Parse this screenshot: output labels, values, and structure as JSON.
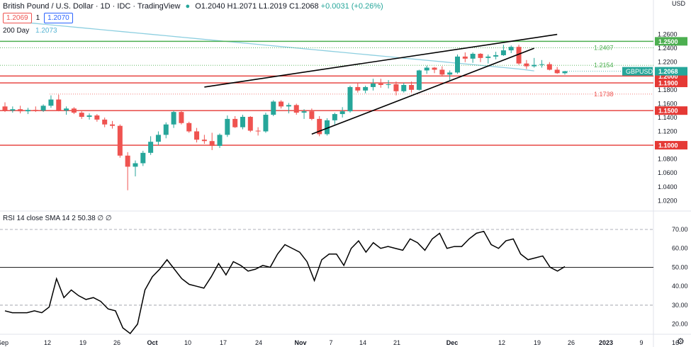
{
  "header": {
    "title": "British Pound / U.S. Dollar · 1D · IDC · TradingView",
    "open": "O1.2040",
    "high": "H1.2071",
    "low": "L1.2019",
    "close": "C1.2068",
    "change": "+0.0031 (+0.26%)",
    "bid": "1.2069",
    "spread": "1",
    "ask": "1.2070"
  },
  "ma": {
    "label": "200 Day",
    "value": "1.2073"
  },
  "rsi_header": "RSI 14 close SMA 14 2   50.38  ∅  ∅",
  "currency": "USD",
  "colors": {
    "up": "#26a69a",
    "down": "#ef5350",
    "ma": "#8dcfe0",
    "hline_red": "#e53935",
    "hline_green": "#4caf50"
  },
  "chart_data": [
    {
      "type": "candlestick",
      "symbol": "GBPUSD",
      "last_price": "1.2068",
      "y_ticks": [
        "1.2600",
        "1.2400",
        "1.2200",
        "1.2000",
        "1.1800",
        "1.1600",
        "1.1400",
        "1.1200",
        "1.1000",
        "1.0800",
        "1.0600",
        "1.0400",
        "1.0200"
      ],
      "x_ticks": [
        "Sep",
        "12",
        "19",
        "26",
        "Oct",
        "10",
        "17",
        "24",
        "Nov",
        "7",
        "14",
        "21",
        "Dec",
        "12",
        "19",
        "26",
        "2023",
        "9",
        "16"
      ],
      "horizontal_levels": [
        {
          "value": 1.25,
          "label": "1.2500",
          "color": "#4caf50"
        },
        {
          "value": 1.2,
          "label": "1.2000",
          "color": "#e53935"
        },
        {
          "value": 1.19,
          "label": "1.1900",
          "color": "#e53935"
        },
        {
          "value": 1.15,
          "label": "1.1500",
          "color": "#e53935"
        },
        {
          "value": 1.1,
          "label": "1.1000",
          "color": "#e53935"
        }
      ],
      "dotted_levels": [
        {
          "value": 1.2407,
          "label": "1.2407",
          "color": "#4caf50"
        },
        {
          "value": 1.2154,
          "label": "1.2154",
          "color": "#4caf50"
        },
        {
          "value": 1.1738,
          "label": "1.1738",
          "color": "#ef5350"
        }
      ],
      "candles": [
        [
          1.156,
          1.162,
          1.148,
          1.15
        ],
        [
          1.15,
          1.156,
          1.147,
          1.152
        ],
        [
          1.152,
          1.157,
          1.146,
          1.149
        ],
        [
          1.149,
          1.154,
          1.145,
          1.151
        ],
        [
          1.151,
          1.156,
          1.148,
          1.15
        ],
        [
          1.15,
          1.159,
          1.148,
          1.157
        ],
        [
          1.157,
          1.172,
          1.154,
          1.166
        ],
        [
          1.166,
          1.173,
          1.149,
          1.15
        ],
        [
          1.15,
          1.156,
          1.144,
          1.153
        ],
        [
          1.153,
          1.155,
          1.145,
          1.147
        ],
        [
          1.147,
          1.149,
          1.138,
          1.141
        ],
        [
          1.141,
          1.146,
          1.137,
          1.143
        ],
        [
          1.143,
          1.145,
          1.134,
          1.137
        ],
        [
          1.137,
          1.14,
          1.126,
          1.13
        ],
        [
          1.13,
          1.135,
          1.124,
          1.128
        ],
        [
          1.128,
          1.13,
          1.082,
          1.085
        ],
        [
          1.085,
          1.09,
          1.035,
          1.069
        ],
        [
          1.069,
          1.078,
          1.055,
          1.074
        ],
        [
          1.074,
          1.092,
          1.07,
          1.089
        ],
        [
          1.089,
          1.113,
          1.086,
          1.105
        ],
        [
          1.105,
          1.12,
          1.1,
          1.115
        ],
        [
          1.115,
          1.133,
          1.11,
          1.13
        ],
        [
          1.13,
          1.15,
          1.125,
          1.148
        ],
        [
          1.148,
          1.15,
          1.13,
          1.132
        ],
        [
          1.132,
          1.134,
          1.118,
          1.12
        ],
        [
          1.12,
          1.125,
          1.104,
          1.108
        ],
        [
          1.108,
          1.115,
          1.102,
          1.106
        ],
        [
          1.106,
          1.118,
          1.093,
          1.099
        ],
        [
          1.099,
          1.117,
          1.096,
          1.115
        ],
        [
          1.115,
          1.143,
          1.112,
          1.138
        ],
        [
          1.138,
          1.142,
          1.125,
          1.126
        ],
        [
          1.126,
          1.144,
          1.123,
          1.141
        ],
        [
          1.141,
          1.142,
          1.119,
          1.121
        ],
        [
          1.121,
          1.126,
          1.114,
          1.12
        ],
        [
          1.12,
          1.147,
          1.118,
          1.144
        ],
        [
          1.144,
          1.165,
          1.142,
          1.163
        ],
        [
          1.163,
          1.165,
          1.153,
          1.156
        ],
        [
          1.156,
          1.161,
          1.146,
          1.158
        ],
        [
          1.158,
          1.16,
          1.144,
          1.147
        ],
        [
          1.147,
          1.152,
          1.138,
          1.149
        ],
        [
          1.149,
          1.153,
          1.136,
          1.138
        ],
        [
          1.138,
          1.142,
          1.113,
          1.116
        ],
        [
          1.116,
          1.139,
          1.114,
          1.136
        ],
        [
          1.136,
          1.147,
          1.13,
          1.145
        ],
        [
          1.145,
          1.155,
          1.14,
          1.149
        ],
        [
          1.149,
          1.186,
          1.147,
          1.184
        ],
        [
          1.184,
          1.19,
          1.176,
          1.179
        ],
        [
          1.179,
          1.186,
          1.175,
          1.184
        ],
        [
          1.184,
          1.196,
          1.179,
          1.189
        ],
        [
          1.189,
          1.196,
          1.183,
          1.187
        ],
        [
          1.187,
          1.194,
          1.182,
          1.188
        ],
        [
          1.188,
          1.192,
          1.172,
          1.178
        ],
        [
          1.178,
          1.19,
          1.176,
          1.187
        ],
        [
          1.187,
          1.192,
          1.176,
          1.18
        ],
        [
          1.18,
          1.209,
          1.179,
          1.208
        ],
        [
          1.208,
          1.215,
          1.203,
          1.212
        ],
        [
          1.212,
          1.213,
          1.204,
          1.209
        ],
        [
          1.209,
          1.214,
          1.199,
          1.202
        ],
        [
          1.202,
          1.208,
          1.194,
          1.205
        ],
        [
          1.205,
          1.231,
          1.203,
          1.228
        ],
        [
          1.228,
          1.234,
          1.22,
          1.225
        ],
        [
          1.225,
          1.234,
          1.219,
          1.232
        ],
        [
          1.232,
          1.233,
          1.22,
          1.226
        ],
        [
          1.226,
          1.231,
          1.218,
          1.228
        ],
        [
          1.228,
          1.235,
          1.224,
          1.23
        ],
        [
          1.23,
          1.245,
          1.229,
          1.237
        ],
        [
          1.237,
          1.244,
          1.233,
          1.242
        ],
        [
          1.242,
          1.245,
          1.216,
          1.218
        ],
        [
          1.218,
          1.223,
          1.21,
          1.214
        ],
        [
          1.214,
          1.226,
          1.212,
          1.216
        ],
        [
          1.216,
          1.223,
          1.212,
          1.217
        ],
        [
          1.217,
          1.22,
          1.208,
          1.209
        ],
        [
          1.209,
          1.213,
          1.203,
          1.204
        ],
        [
          1.204,
          1.2071,
          1.2019,
          1.2068
        ]
      ],
      "ma_200": [
        1.28,
        1.278,
        1.276,
        1.274,
        1.272,
        1.27,
        1.268,
        1.266,
        1.264,
        1.262,
        1.26,
        1.258,
        1.256,
        1.254,
        1.252,
        1.25,
        1.248,
        1.246,
        1.244,
        1.242,
        1.24,
        1.238,
        1.236,
        1.234,
        1.232,
        1.23,
        1.228,
        1.226,
        1.224,
        1.222,
        1.22,
        1.218,
        1.216,
        1.214,
        1.212,
        1.21,
        1.2073
      ],
      "channel": [
        {
          "from": [
            26,
            1.184
          ],
          "to": [
            72,
            1.26
          ]
        },
        {
          "from": [
            40,
            1.116
          ],
          "to": [
            69,
            1.24
          ]
        }
      ]
    },
    {
      "type": "line",
      "title": "RSI 14 close SMA 14 2",
      "last_value": "50.38",
      "y_ticks": [
        "70.00",
        "60.00",
        "50.00",
        "40.00",
        "30.00",
        "20.00"
      ],
      "levels": [
        70,
        50,
        30
      ],
      "values": [
        27,
        26,
        26,
        26,
        27,
        26,
        29,
        44,
        34,
        38,
        35,
        33,
        34,
        32,
        28,
        27,
        18,
        15,
        20,
        38,
        45,
        49,
        54,
        49,
        44,
        41,
        40,
        39,
        45,
        52,
        46,
        53,
        51,
        48,
        49,
        51,
        50,
        57,
        62,
        60,
        58,
        53,
        43,
        54,
        57,
        57,
        51,
        60,
        64,
        58,
        63,
        60,
        61,
        60,
        59,
        65,
        63,
        59,
        65,
        68,
        60,
        61,
        61,
        65,
        68,
        69,
        62,
        60,
        64,
        65,
        57,
        54,
        55,
        56,
        50,
        48,
        50.38
      ]
    }
  ]
}
